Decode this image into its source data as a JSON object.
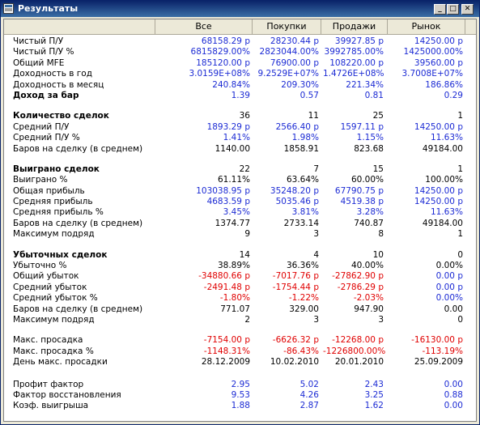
{
  "window": {
    "title": "Результаты",
    "controls": {
      "minimize": "_",
      "maximize": "□",
      "close": "✕"
    }
  },
  "columns": [
    "Все",
    "Покупки",
    "Продажи",
    "Рынок"
  ],
  "colors": {
    "black": "#000000",
    "blue": "#1c2bd4",
    "red": "#e00000"
  },
  "rows": [
    {
      "label": "Чистый П/У",
      "values": [
        "68158.29 р",
        "28230.44 р",
        "39927.85 р",
        "14250.00 р"
      ],
      "colors": [
        "b",
        "b",
        "b",
        "b"
      ]
    },
    {
      "label": "Чистый П/У %",
      "values": [
        "6815829.00%",
        "2823044.00%",
        "3992785.00%",
        "1425000.00%"
      ],
      "colors": [
        "b",
        "b",
        "b",
        "b"
      ]
    },
    {
      "label": "Общий MFE",
      "values": [
        "185120.00 р",
        "76900.00 р",
        "108220.00 р",
        "39560.00 р"
      ],
      "colors": [
        "b",
        "b",
        "b",
        "b"
      ]
    },
    {
      "label": "Доходность в год",
      "values": [
        "3.0159E+08%",
        "9.2529E+07%",
        "1.4726E+08%",
        "3.7008E+07%"
      ],
      "colors": [
        "b",
        "b",
        "b",
        "b"
      ]
    },
    {
      "label": "Доходность в месяц",
      "values": [
        "240.84%",
        "209.30%",
        "221.34%",
        "186.86%"
      ],
      "colors": [
        "b",
        "b",
        "b",
        "b"
      ]
    },
    {
      "label": "Доход за бар",
      "bold": true,
      "values": [
        "1.39",
        "0.57",
        "0.81",
        "0.29"
      ],
      "colors": [
        "b",
        "b",
        "b",
        "b"
      ]
    },
    {
      "spacer": true
    },
    {
      "label": "Количество сделок",
      "bold": true,
      "values": [
        "36",
        "11",
        "25",
        "1"
      ],
      "colors": [
        "k",
        "k",
        "k",
        "k"
      ]
    },
    {
      "label": "Средний П/У",
      "values": [
        "1893.29 р",
        "2566.40 р",
        "1597.11 р",
        "14250.00 р"
      ],
      "colors": [
        "b",
        "b",
        "b",
        "b"
      ]
    },
    {
      "label": "Средний П/У %",
      "values": [
        "1.41%",
        "1.98%",
        "1.15%",
        "11.63%"
      ],
      "colors": [
        "b",
        "b",
        "b",
        "b"
      ]
    },
    {
      "label": "Баров на сделку (в среднем)",
      "values": [
        "1140.00",
        "1858.91",
        "823.68",
        "49184.00"
      ],
      "colors": [
        "k",
        "k",
        "k",
        "k"
      ]
    },
    {
      "spacer": true
    },
    {
      "label": "Выиграно сделок",
      "bold": true,
      "values": [
        "22",
        "7",
        "15",
        "1"
      ],
      "colors": [
        "k",
        "k",
        "k",
        "k"
      ]
    },
    {
      "label": "Выиграно %",
      "values": [
        "61.11%",
        "63.64%",
        "60.00%",
        "100.00%"
      ],
      "colors": [
        "k",
        "k",
        "k",
        "k"
      ]
    },
    {
      "label": "Общая прибыль",
      "values": [
        "103038.95 р",
        "35248.20 р",
        "67790.75 р",
        "14250.00 р"
      ],
      "colors": [
        "b",
        "b",
        "b",
        "b"
      ]
    },
    {
      "label": "Средняя прибыль",
      "values": [
        "4683.59 р",
        "5035.46 р",
        "4519.38 р",
        "14250.00 р"
      ],
      "colors": [
        "b",
        "b",
        "b",
        "b"
      ]
    },
    {
      "label": "Средняя прибыль %",
      "values": [
        "3.45%",
        "3.81%",
        "3.28%",
        "11.63%"
      ],
      "colors": [
        "b",
        "b",
        "b",
        "b"
      ]
    },
    {
      "label": "Баров на сделку (в среднем)",
      "values": [
        "1374.77",
        "2733.14",
        "740.87",
        "49184.00"
      ],
      "colors": [
        "k",
        "k",
        "k",
        "k"
      ]
    },
    {
      "label": "Максимум подряд",
      "values": [
        "9",
        "3",
        "8",
        "1"
      ],
      "colors": [
        "k",
        "k",
        "k",
        "k"
      ]
    },
    {
      "spacer": true
    },
    {
      "label": "Убыточных сделок",
      "bold": true,
      "values": [
        "14",
        "4",
        "10",
        "0"
      ],
      "colors": [
        "k",
        "k",
        "k",
        "k"
      ]
    },
    {
      "label": "Убыточно %",
      "values": [
        "38.89%",
        "36.36%",
        "40.00%",
        "0.00%"
      ],
      "colors": [
        "k",
        "k",
        "k",
        "k"
      ]
    },
    {
      "label": "Общий убыток",
      "values": [
        "-34880.66 р",
        "-7017.76 р",
        "-27862.90 р",
        "0.00 р"
      ],
      "colors": [
        "r",
        "r",
        "r",
        "b"
      ]
    },
    {
      "label": "Средний убыток",
      "values": [
        "-2491.48 р",
        "-1754.44 р",
        "-2786.29 р",
        "0.00 р"
      ],
      "colors": [
        "r",
        "r",
        "r",
        "b"
      ]
    },
    {
      "label": "Средний убыток %",
      "values": [
        "-1.80%",
        "-1.22%",
        "-2.03%",
        "0.00%"
      ],
      "colors": [
        "r",
        "r",
        "r",
        "b"
      ]
    },
    {
      "label": "Баров на сделку (в среднем)",
      "values": [
        "771.07",
        "329.00",
        "947.90",
        "0.00"
      ],
      "colors": [
        "k",
        "k",
        "k",
        "k"
      ]
    },
    {
      "label": "Максимум подряд",
      "values": [
        "2",
        "3",
        "3",
        "0"
      ],
      "colors": [
        "k",
        "k",
        "k",
        "k"
      ]
    },
    {
      "spacer": true
    },
    {
      "label": "Макс. просадка",
      "values": [
        "-7154.00 р",
        "-6626.32 р",
        "-12268.00 р",
        "-16130.00 р"
      ],
      "colors": [
        "r",
        "r",
        "r",
        "r"
      ]
    },
    {
      "label": "Макс. просадка %",
      "values": [
        "-1148.31%",
        "-86.43%",
        "-1226800.00%",
        "-113.19%"
      ],
      "colors": [
        "r",
        "r",
        "r",
        "r"
      ]
    },
    {
      "label": "День макс. просадки",
      "values": [
        "28.12.2009",
        "10.02.2010",
        "20.01.2010",
        "25.09.2009"
      ],
      "colors": [
        "k",
        "k",
        "k",
        "k"
      ]
    },
    {
      "spacer": true,
      "large": true
    },
    {
      "label": "Профит фактор",
      "values": [
        "2.95",
        "5.02",
        "2.43",
        "0.00"
      ],
      "colors": [
        "b",
        "b",
        "b",
        "b"
      ]
    },
    {
      "label": "Фактор восстановления",
      "values": [
        "9.53",
        "4.26",
        "3.25",
        "0.88"
      ],
      "colors": [
        "b",
        "b",
        "b",
        "b"
      ]
    },
    {
      "label": "Коэф. выигрыша",
      "values": [
        "1.88",
        "2.87",
        "1.62",
        "0.00"
      ],
      "colors": [
        "b",
        "b",
        "b",
        "b"
      ]
    }
  ]
}
